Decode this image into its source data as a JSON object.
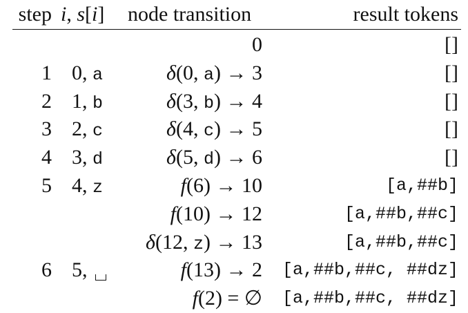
{
  "headers": {
    "step": "step",
    "i": "i",
    "sep": ", ",
    "s": "s",
    "idx": "[i]",
    "transition": "node transition",
    "tokens": "result tokens"
  },
  "rows": [
    {
      "step": "",
      "i": "",
      "ch": "",
      "transition": [
        {
          "t": "0",
          "s": "plain"
        }
      ],
      "tokens": "[]"
    },
    {
      "step": "1",
      "i": "0",
      "ch": "a",
      "transition": [
        {
          "t": "δ",
          "s": "it"
        },
        {
          "t": "(0, ",
          "s": "plain"
        },
        {
          "t": "a",
          "s": "mono"
        },
        {
          "t": ") → 3",
          "s": "plain"
        }
      ],
      "tokens": "[]"
    },
    {
      "step": "2",
      "i": "1",
      "ch": "b",
      "transition": [
        {
          "t": "δ",
          "s": "it"
        },
        {
          "t": "(3, ",
          "s": "plain"
        },
        {
          "t": "b",
          "s": "mono"
        },
        {
          "t": ") → 4",
          "s": "plain"
        }
      ],
      "tokens": "[]"
    },
    {
      "step": "3",
      "i": "2",
      "ch": "c",
      "transition": [
        {
          "t": "δ",
          "s": "it"
        },
        {
          "t": "(4, ",
          "s": "plain"
        },
        {
          "t": "c",
          "s": "mono"
        },
        {
          "t": ") → 5",
          "s": "plain"
        }
      ],
      "tokens": "[]"
    },
    {
      "step": "4",
      "i": "3",
      "ch": "d",
      "transition": [
        {
          "t": "δ",
          "s": "it"
        },
        {
          "t": "(5, ",
          "s": "plain"
        },
        {
          "t": "d",
          "s": "mono"
        },
        {
          "t": ") → 6",
          "s": "plain"
        }
      ],
      "tokens": "[]"
    },
    {
      "step": "5",
      "i": "4",
      "ch": "z",
      "transition": [
        {
          "t": "f",
          "s": "it"
        },
        {
          "t": "(6) → 10",
          "s": "plain"
        }
      ],
      "tokens": "[a,##b]"
    },
    {
      "step": "",
      "i": "",
      "ch": "",
      "transition": [
        {
          "t": "f",
          "s": "it"
        },
        {
          "t": "(10) → 12",
          "s": "plain"
        }
      ],
      "tokens": "[a,##b,##c]"
    },
    {
      "step": "",
      "i": "",
      "ch": "",
      "transition": [
        {
          "t": "δ",
          "s": "it"
        },
        {
          "t": "(12, ",
          "s": "plain"
        },
        {
          "t": "z",
          "s": "mono"
        },
        {
          "t": ") → 13",
          "s": "plain"
        }
      ],
      "tokens": "[a,##b,##c]"
    },
    {
      "step": "6",
      "i": "5",
      "ch": "␣",
      "transition": [
        {
          "t": "f",
          "s": "it"
        },
        {
          "t": "(13) → 2",
          "s": "plain"
        }
      ],
      "tokens": "[a,##b,##c, ##dz]"
    },
    {
      "step": "",
      "i": "",
      "ch": "",
      "transition": [
        {
          "t": "f",
          "s": "it"
        },
        {
          "t": "(2) = ∅",
          "s": "plain"
        }
      ],
      "tokens": "[a,##b,##c, ##dz]"
    }
  ]
}
